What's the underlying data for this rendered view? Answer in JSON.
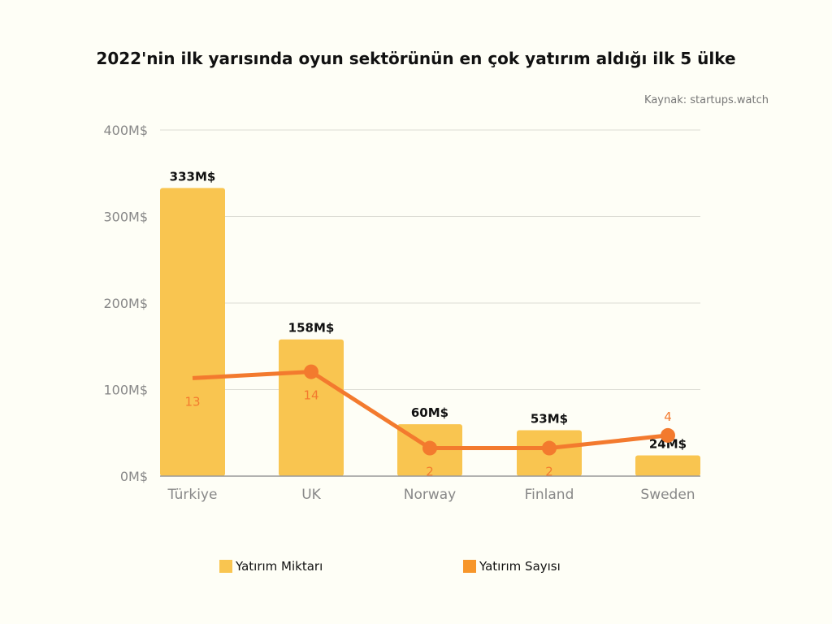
{
  "chart_data": {
    "type": "bar",
    "title": "2022'nin ilk yarısında oyun sektörünün en çok yatırım aldığı ilk 5 ülke",
    "source": "Kaynak: startups.watch",
    "categories": [
      "Türkiye",
      "UK",
      "Norway",
      "Finland",
      "Sweden"
    ],
    "ylim": [
      0,
      400
    ],
    "yticks": [
      0,
      100,
      200,
      300,
      400
    ],
    "ytick_labels": [
      "0M$",
      "100M$",
      "200M$",
      "300M$",
      "400M$"
    ],
    "y2lim": [
      -2.4,
      52
    ],
    "grid": true,
    "legend_position": "bottom",
    "series": [
      {
        "name": "Yatırım Miktarı",
        "type": "bar",
        "color": "#f9c550",
        "values": [
          333,
          158,
          60,
          53,
          24
        ],
        "labels": [
          "333M$",
          "158M$",
          "60M$",
          "53M$",
          "24M$"
        ]
      },
      {
        "name": "Yatırım Sayısı",
        "type": "line",
        "color": "#f37a2e",
        "legend_color": "#f7962a",
        "axis": "secondary",
        "values": [
          13,
          14,
          2,
          2,
          4
        ],
        "labels": [
          "13",
          "14",
          "2",
          "2",
          "4"
        ]
      }
    ]
  }
}
